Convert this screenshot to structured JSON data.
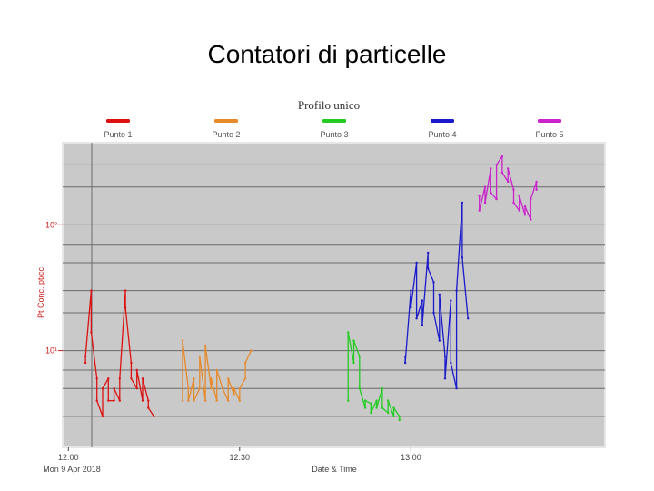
{
  "slide": {
    "title": "Contatori di particelle"
  },
  "chart_data": {
    "type": "line",
    "title": "Profilo unico",
    "xlabel": "Date & Time",
    "ylabel": "Pt Conc. pt/cc",
    "x_ticks": [
      "12:00",
      "12:30",
      "13:00"
    ],
    "x_sublabel": "Mon 9 Apr 2018",
    "y_ticks": [
      "10¹",
      "10²"
    ],
    "y_scale": "log",
    "ylim": [
      1.7,
      450
    ],
    "xlim": [
      "11:59",
      "13:34"
    ],
    "grid": true,
    "legend_position": "top",
    "background": "#c9c9c9",
    "series": [
      {
        "name": "Punto 1",
        "color": "#dd1111",
        "x": [
          "12:03",
          "12:03",
          "12:04",
          "12:04",
          "12:05",
          "12:05",
          "12:06",
          "12:06",
          "12:07",
          "12:07",
          "12:08",
          "12:08",
          "12:09",
          "12:09",
          "12:10",
          "12:10",
          "12:11",
          "12:11",
          "12:12",
          "12:12",
          "12:13",
          "12:13",
          "12:14",
          "12:14",
          "12:15"
        ],
        "values": [
          8,
          9,
          30,
          14,
          6,
          4,
          3,
          5,
          6,
          4,
          4,
          5,
          4,
          6,
          30,
          22,
          8,
          6,
          5,
          7,
          4,
          6,
          4,
          3.5,
          3
        ]
      },
      {
        "name": "Punto 2",
        "color": "#e8892a",
        "x": [
          "12:20",
          "12:20",
          "12:21",
          "12:21",
          "12:22",
          "12:22",
          "12:23",
          "12:23",
          "12:24",
          "12:24",
          "12:25",
          "12:25",
          "12:26",
          "12:26",
          "12:27",
          "12:27",
          "12:28",
          "12:28",
          "12:29",
          "12:29",
          "12:30",
          "12:30",
          "12:31",
          "12:31",
          "12:32"
        ],
        "values": [
          4,
          12,
          5,
          4,
          6,
          4,
          5,
          9,
          4,
          11,
          5,
          6,
          4,
          7,
          5,
          5,
          4,
          6,
          4.5,
          5,
          4,
          5,
          6,
          8,
          10
        ]
      },
      {
        "name": "Punto 3",
        "color": "#22cc22",
        "x": [
          "12:49",
          "12:49",
          "12:50",
          "12:50",
          "12:51",
          "12:51",
          "12:52",
          "12:52",
          "12:53",
          "12:53",
          "12:54",
          "12:54",
          "12:55",
          "12:55",
          "12:56",
          "12:56",
          "12:57",
          "12:57",
          "12:58",
          "12:58"
        ],
        "values": [
          4,
          14,
          8,
          12,
          9,
          5,
          3.5,
          4,
          3.8,
          3.2,
          4,
          3.5,
          5,
          3.5,
          3.2,
          4,
          3,
          3.5,
          3,
          2.8
        ]
      },
      {
        "name": "Punto 4",
        "color": "#1a1acc",
        "x": [
          "12:59",
          "12:59",
          "13:00",
          "13:00",
          "13:01",
          "13:01",
          "13:02",
          "13:02",
          "13:03",
          "13:03",
          "13:04",
          "13:04",
          "13:05",
          "13:05",
          "13:06",
          "13:06",
          "13:07",
          "13:07",
          "13:08",
          "13:08",
          "13:09",
          "13:09",
          "13:10"
        ],
        "values": [
          9,
          8,
          30,
          22,
          50,
          18,
          25,
          16,
          60,
          45,
          35,
          20,
          12,
          28,
          9,
          6,
          25,
          8,
          5,
          30,
          150,
          55,
          18
        ]
      },
      {
        "name": "Punto 5",
        "color": "#cc22cc",
        "x": [
          "13:12",
          "13:12",
          "13:13",
          "13:13",
          "13:14",
          "13:14",
          "13:15",
          "13:15",
          "13:16",
          "13:16",
          "13:17",
          "13:17",
          "13:18",
          "13:18",
          "13:19",
          "13:19",
          "13:20",
          "13:20",
          "13:21",
          "13:21",
          "13:22",
          "13:22"
        ],
        "values": [
          170,
          130,
          200,
          150,
          280,
          180,
          160,
          300,
          350,
          260,
          220,
          280,
          190,
          150,
          130,
          170,
          120,
          140,
          110,
          160,
          220,
          190
        ]
      }
    ]
  }
}
